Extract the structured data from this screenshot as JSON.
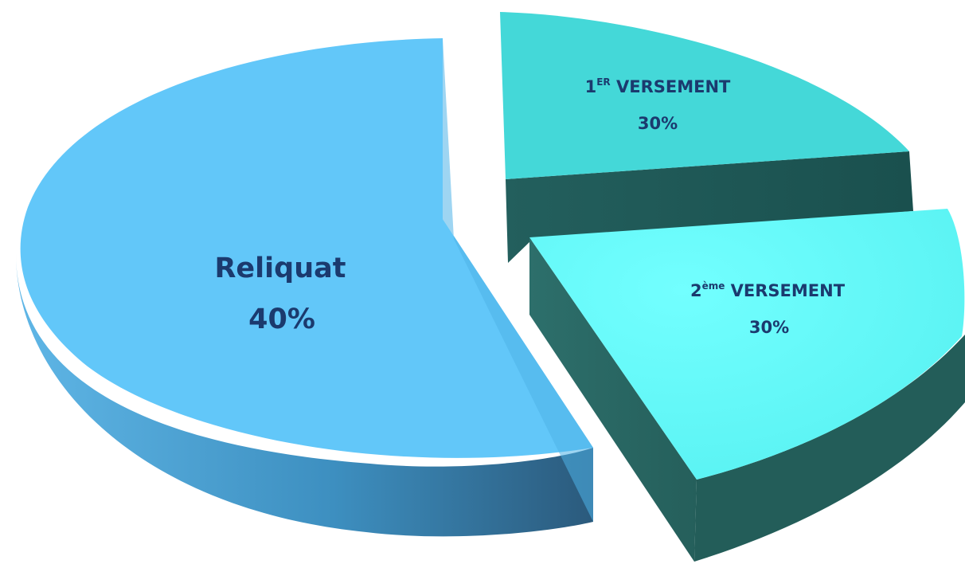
{
  "chart_data": {
    "type": "pie",
    "style": "3d-exploded",
    "slices": [
      {
        "name": "Reliquat",
        "value": 40,
        "value_label": "40%",
        "color": "#62c7f9",
        "side_color": "#3f8fc0"
      },
      {
        "name_number": "1",
        "name_sup": "ER",
        "name_rest": " VERSEMENT",
        "value": 30,
        "value_label": "30%",
        "color": "#44d8d8",
        "side_color": "#1d5957"
      },
      {
        "name_number": "2",
        "name_sup": "ème",
        "name_rest": " VERSEMENT",
        "value": 30,
        "value_label": "30%",
        "color": "#66fcfc",
        "side_color": "#2a6e6a"
      }
    ],
    "label_color": "#1b3a6e"
  }
}
